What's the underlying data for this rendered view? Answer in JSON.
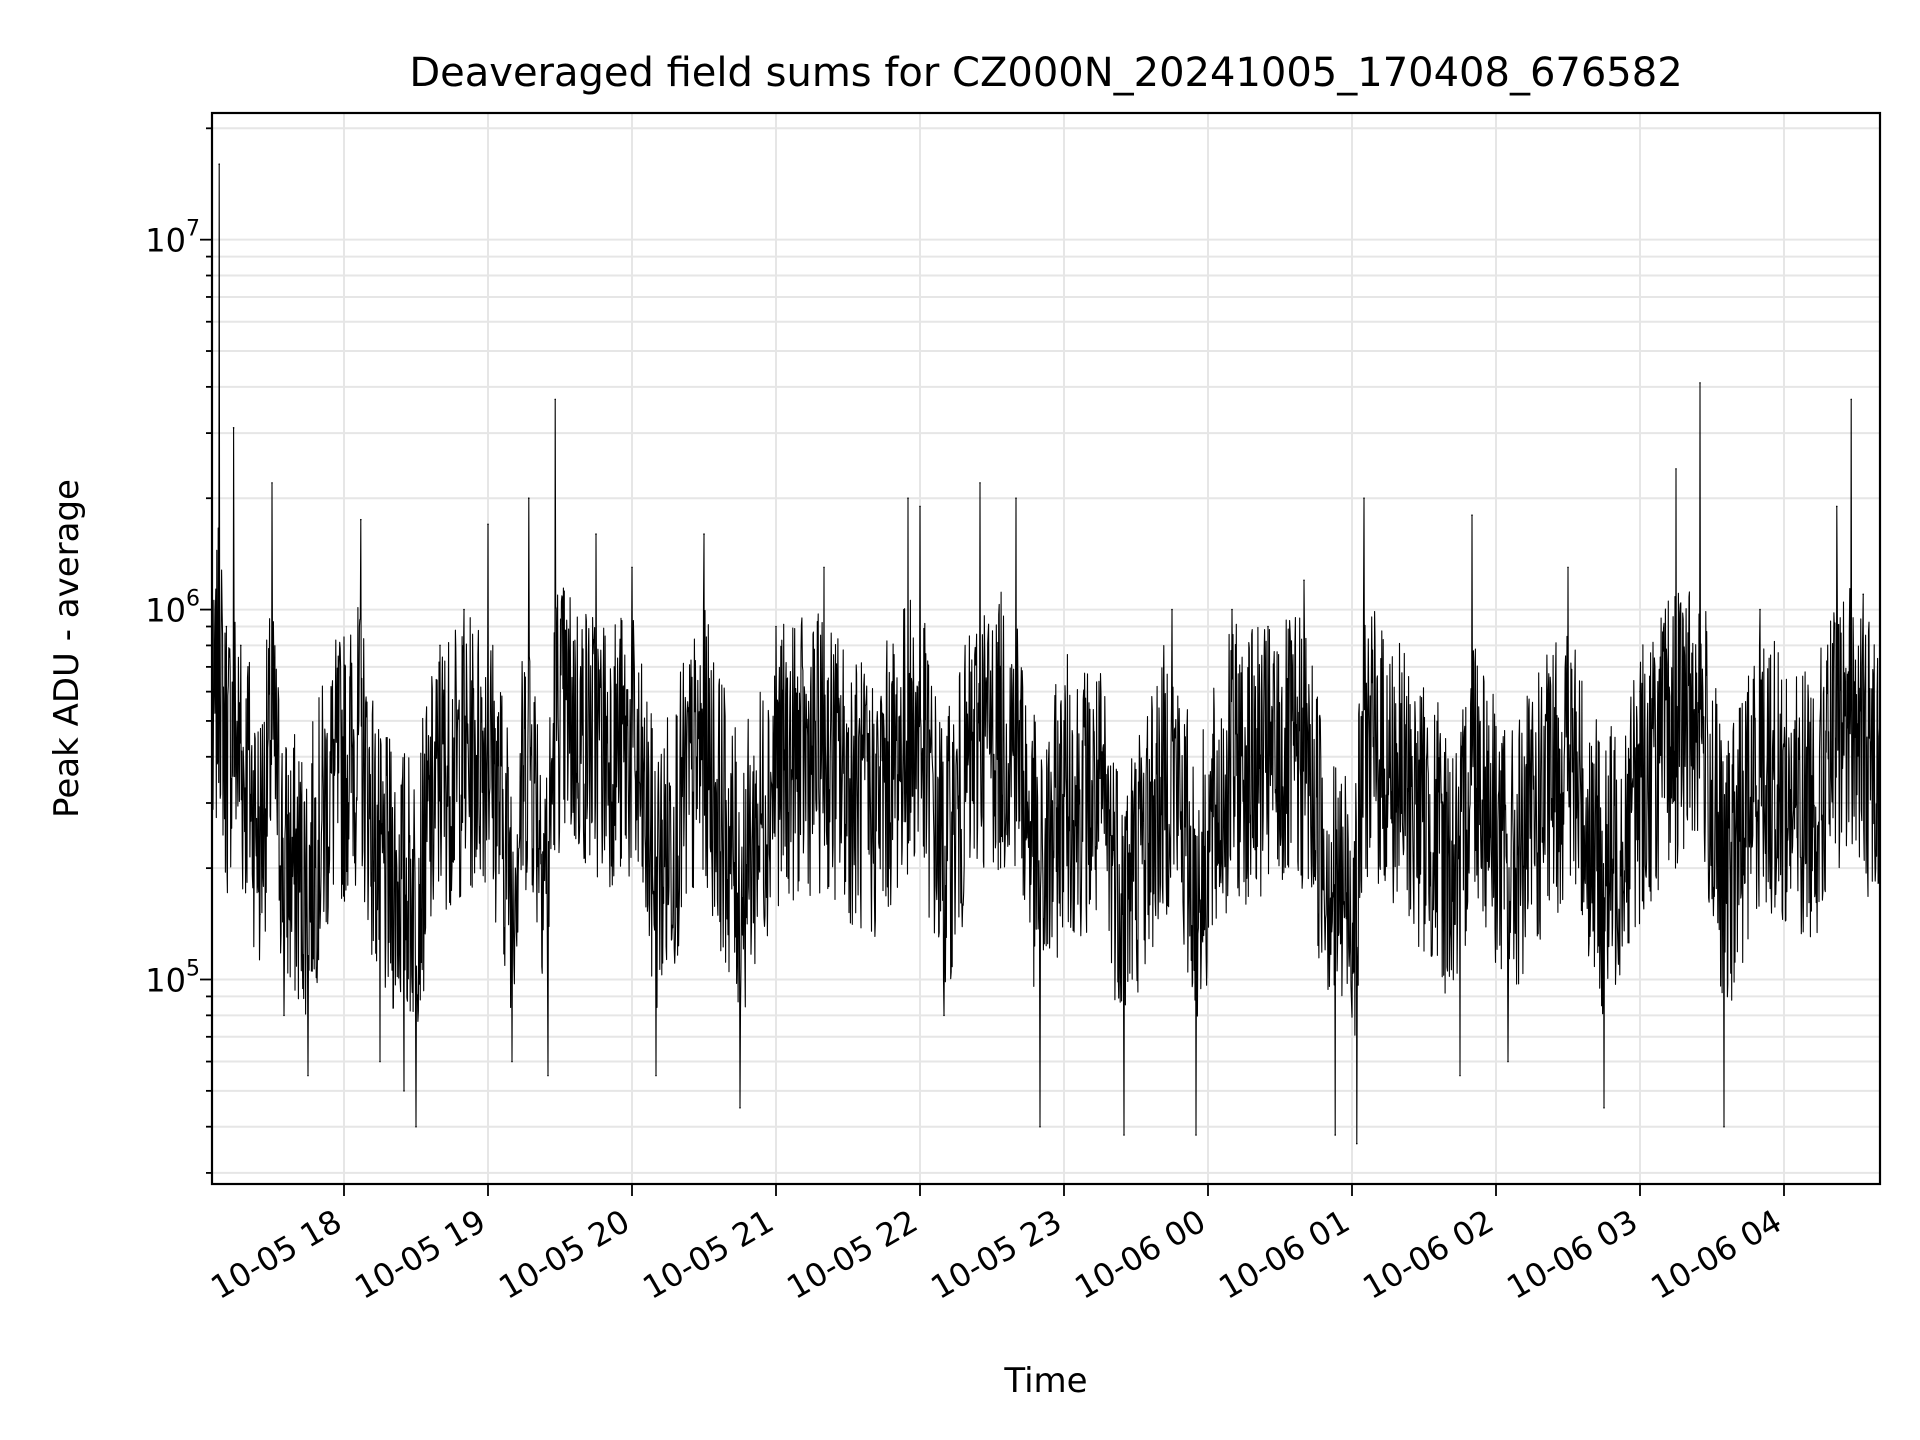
{
  "chart_data": {
    "type": "line",
    "title": "Deaveraged field sums for CZ000N_20241005_170408_676582",
    "xlabel": "Time",
    "ylabel": "Peak ADU - average",
    "y_scale": "log",
    "x_range": [
      "2024-10-05 17:05",
      "2024-10-06 04:40"
    ],
    "ylim": [
      28000,
      22000000
    ],
    "grid": true,
    "line_color": "#000000",
    "x_ticks": [
      {
        "time": "2024-10-05 18:00",
        "label": "10-05 18"
      },
      {
        "time": "2024-10-05 19:00",
        "label": "10-05 19"
      },
      {
        "time": "2024-10-05 20:00",
        "label": "10-05 20"
      },
      {
        "time": "2024-10-05 21:00",
        "label": "10-05 21"
      },
      {
        "time": "2024-10-05 22:00",
        "label": "10-05 22"
      },
      {
        "time": "2024-10-05 23:00",
        "label": "10-05 23"
      },
      {
        "time": "2024-10-06 00:00",
        "label": "10-06 00"
      },
      {
        "time": "2024-10-06 01:00",
        "label": "10-06 01"
      },
      {
        "time": "2024-10-06 02:00",
        "label": "10-06 02"
      },
      {
        "time": "2024-10-06 03:00",
        "label": "10-06 03"
      },
      {
        "time": "2024-10-06 04:00",
        "label": "10-06 04"
      }
    ],
    "y_ticks": [
      {
        "value": 100000,
        "base": "10",
        "exp": "5"
      },
      {
        "value": 1000000,
        "base": "10",
        "exp": "6"
      },
      {
        "value": 10000000,
        "base": "10",
        "exp": "7"
      }
    ],
    "series": [
      {
        "points": [
          [
            "2024-10-05 17:05",
            850000
          ],
          [
            "2024-10-05 17:08",
            16000000
          ],
          [
            "2024-10-05 17:11",
            900000
          ],
          [
            "2024-10-05 17:14",
            3100000
          ],
          [
            "2024-10-05 17:17",
            800000
          ],
          [
            "2024-10-05 17:20",
            700000
          ],
          [
            "2024-10-05 17:25",
            150000
          ],
          [
            "2024-10-05 17:30",
            2200000
          ],
          [
            "2024-10-05 17:35",
            80000
          ],
          [
            "2024-10-05 17:45",
            55000
          ],
          [
            "2024-10-05 17:55",
            600000
          ],
          [
            "2024-10-05 18:07",
            1750000
          ],
          [
            "2024-10-05 18:15",
            60000
          ],
          [
            "2024-10-05 18:25",
            50000
          ],
          [
            "2024-10-05 18:30",
            40000
          ],
          [
            "2024-10-05 18:40",
            800000
          ],
          [
            "2024-10-05 18:50",
            1000000
          ],
          [
            "2024-10-05 19:00",
            1700000
          ],
          [
            "2024-10-05 19:10",
            60000
          ],
          [
            "2024-10-05 19:17",
            2000000
          ],
          [
            "2024-10-05 19:25",
            55000
          ],
          [
            "2024-10-05 19:28",
            3700000
          ],
          [
            "2024-10-05 19:45",
            1600000
          ],
          [
            "2024-10-05 20:00",
            1300000
          ],
          [
            "2024-10-05 20:10",
            55000
          ],
          [
            "2024-10-05 20:30",
            1600000
          ],
          [
            "2024-10-05 20:45",
            45000
          ],
          [
            "2024-10-05 21:00",
            900000
          ],
          [
            "2024-10-05 21:20",
            1300000
          ],
          [
            "2024-10-05 21:40",
            300000
          ],
          [
            "2024-10-05 21:55",
            2000000
          ],
          [
            "2024-10-05 22:00",
            1900000
          ],
          [
            "2024-10-05 22:10",
            80000
          ],
          [
            "2024-10-05 22:25",
            2200000
          ],
          [
            "2024-10-05 22:40",
            2000000
          ],
          [
            "2024-10-05 22:50",
            40000
          ],
          [
            "2024-10-05 23:00",
            500000
          ],
          [
            "2024-10-05 23:15",
            350000
          ],
          [
            "2024-10-05 23:25",
            38000
          ],
          [
            "2024-10-05 23:45",
            1000000
          ],
          [
            "2024-10-05 23:55",
            38000
          ],
          [
            "2024-10-06 00:10",
            1000000
          ],
          [
            "2024-10-06 00:25",
            900000
          ],
          [
            "2024-10-06 00:40",
            1200000
          ],
          [
            "2024-10-06 00:53",
            38000
          ],
          [
            "2024-10-06 01:02",
            36000
          ],
          [
            "2024-10-06 01:05",
            2000000
          ],
          [
            "2024-10-06 01:25",
            400000
          ],
          [
            "2024-10-06 01:45",
            55000
          ],
          [
            "2024-10-06 01:50",
            1800000
          ],
          [
            "2024-10-06 02:05",
            60000
          ],
          [
            "2024-10-06 02:30",
            1300000
          ],
          [
            "2024-10-06 02:45",
            45000
          ],
          [
            "2024-10-06 03:00",
            600000
          ],
          [
            "2024-10-06 03:15",
            2400000
          ],
          [
            "2024-10-06 03:25",
            4100000
          ],
          [
            "2024-10-06 03:35",
            40000
          ],
          [
            "2024-10-06 03:50",
            1000000
          ],
          [
            "2024-10-06 04:05",
            300000
          ],
          [
            "2024-10-06 04:15",
            500000
          ],
          [
            "2024-10-06 04:22",
            1900000
          ],
          [
            "2024-10-06 04:28",
            3700000
          ],
          [
            "2024-10-06 04:33",
            1100000
          ],
          [
            "2024-10-06 04:40",
            1350000
          ]
        ]
      }
    ]
  }
}
